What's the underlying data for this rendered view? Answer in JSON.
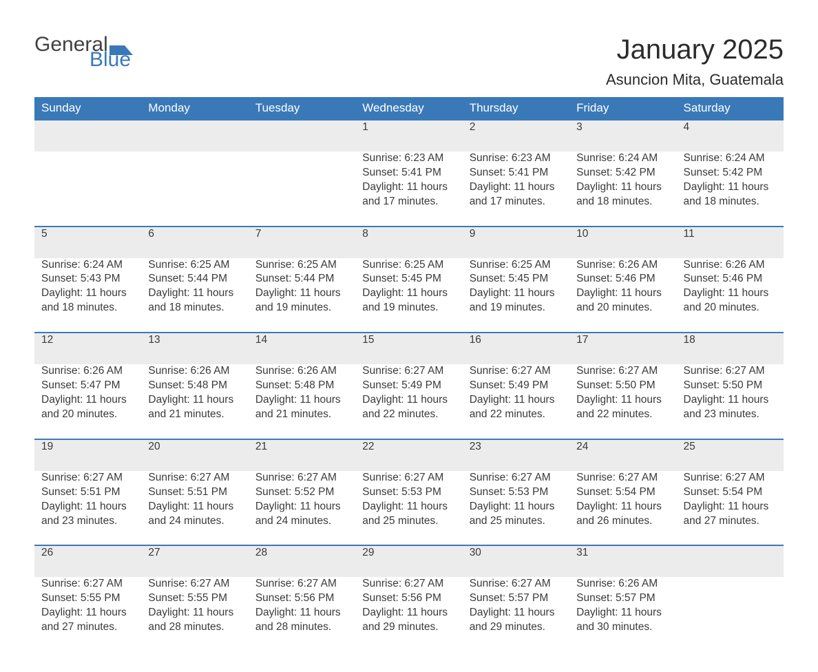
{
  "logo": {
    "word1": "General",
    "word2": "Blue",
    "shape_color": "#3a79b8"
  },
  "title": "January 2025",
  "location": "Asuncion Mita, Guatemala",
  "colors": {
    "header_bg": "#3a79b8",
    "header_text": "#ffffff",
    "daynum_bg": "#ececec",
    "row_border": "#3a79b8",
    "body_text": "#3a3a3a"
  },
  "weekday_labels": [
    "Sunday",
    "Monday",
    "Tuesday",
    "Wednesday",
    "Thursday",
    "Friday",
    "Saturday"
  ],
  "weeks": [
    [
      null,
      null,
      null,
      {
        "n": "1",
        "sunrise": "Sunrise: 6:23 AM",
        "sunset": "Sunset: 5:41 PM",
        "d1": "Daylight: 11 hours",
        "d2": "and 17 minutes."
      },
      {
        "n": "2",
        "sunrise": "Sunrise: 6:23 AM",
        "sunset": "Sunset: 5:41 PM",
        "d1": "Daylight: 11 hours",
        "d2": "and 17 minutes."
      },
      {
        "n": "3",
        "sunrise": "Sunrise: 6:24 AM",
        "sunset": "Sunset: 5:42 PM",
        "d1": "Daylight: 11 hours",
        "d2": "and 18 minutes."
      },
      {
        "n": "4",
        "sunrise": "Sunrise: 6:24 AM",
        "sunset": "Sunset: 5:42 PM",
        "d1": "Daylight: 11 hours",
        "d2": "and 18 minutes."
      }
    ],
    [
      {
        "n": "5",
        "sunrise": "Sunrise: 6:24 AM",
        "sunset": "Sunset: 5:43 PM",
        "d1": "Daylight: 11 hours",
        "d2": "and 18 minutes."
      },
      {
        "n": "6",
        "sunrise": "Sunrise: 6:25 AM",
        "sunset": "Sunset: 5:44 PM",
        "d1": "Daylight: 11 hours",
        "d2": "and 18 minutes."
      },
      {
        "n": "7",
        "sunrise": "Sunrise: 6:25 AM",
        "sunset": "Sunset: 5:44 PM",
        "d1": "Daylight: 11 hours",
        "d2": "and 19 minutes."
      },
      {
        "n": "8",
        "sunrise": "Sunrise: 6:25 AM",
        "sunset": "Sunset: 5:45 PM",
        "d1": "Daylight: 11 hours",
        "d2": "and 19 minutes."
      },
      {
        "n": "9",
        "sunrise": "Sunrise: 6:25 AM",
        "sunset": "Sunset: 5:45 PM",
        "d1": "Daylight: 11 hours",
        "d2": "and 19 minutes."
      },
      {
        "n": "10",
        "sunrise": "Sunrise: 6:26 AM",
        "sunset": "Sunset: 5:46 PM",
        "d1": "Daylight: 11 hours",
        "d2": "and 20 minutes."
      },
      {
        "n": "11",
        "sunrise": "Sunrise: 6:26 AM",
        "sunset": "Sunset: 5:46 PM",
        "d1": "Daylight: 11 hours",
        "d2": "and 20 minutes."
      }
    ],
    [
      {
        "n": "12",
        "sunrise": "Sunrise: 6:26 AM",
        "sunset": "Sunset: 5:47 PM",
        "d1": "Daylight: 11 hours",
        "d2": "and 20 minutes."
      },
      {
        "n": "13",
        "sunrise": "Sunrise: 6:26 AM",
        "sunset": "Sunset: 5:48 PM",
        "d1": "Daylight: 11 hours",
        "d2": "and 21 minutes."
      },
      {
        "n": "14",
        "sunrise": "Sunrise: 6:26 AM",
        "sunset": "Sunset: 5:48 PM",
        "d1": "Daylight: 11 hours",
        "d2": "and 21 minutes."
      },
      {
        "n": "15",
        "sunrise": "Sunrise: 6:27 AM",
        "sunset": "Sunset: 5:49 PM",
        "d1": "Daylight: 11 hours",
        "d2": "and 22 minutes."
      },
      {
        "n": "16",
        "sunrise": "Sunrise: 6:27 AM",
        "sunset": "Sunset: 5:49 PM",
        "d1": "Daylight: 11 hours",
        "d2": "and 22 minutes."
      },
      {
        "n": "17",
        "sunrise": "Sunrise: 6:27 AM",
        "sunset": "Sunset: 5:50 PM",
        "d1": "Daylight: 11 hours",
        "d2": "and 22 minutes."
      },
      {
        "n": "18",
        "sunrise": "Sunrise: 6:27 AM",
        "sunset": "Sunset: 5:50 PM",
        "d1": "Daylight: 11 hours",
        "d2": "and 23 minutes."
      }
    ],
    [
      {
        "n": "19",
        "sunrise": "Sunrise: 6:27 AM",
        "sunset": "Sunset: 5:51 PM",
        "d1": "Daylight: 11 hours",
        "d2": "and 23 minutes."
      },
      {
        "n": "20",
        "sunrise": "Sunrise: 6:27 AM",
        "sunset": "Sunset: 5:51 PM",
        "d1": "Daylight: 11 hours",
        "d2": "and 24 minutes."
      },
      {
        "n": "21",
        "sunrise": "Sunrise: 6:27 AM",
        "sunset": "Sunset: 5:52 PM",
        "d1": "Daylight: 11 hours",
        "d2": "and 24 minutes."
      },
      {
        "n": "22",
        "sunrise": "Sunrise: 6:27 AM",
        "sunset": "Sunset: 5:53 PM",
        "d1": "Daylight: 11 hours",
        "d2": "and 25 minutes."
      },
      {
        "n": "23",
        "sunrise": "Sunrise: 6:27 AM",
        "sunset": "Sunset: 5:53 PM",
        "d1": "Daylight: 11 hours",
        "d2": "and 25 minutes."
      },
      {
        "n": "24",
        "sunrise": "Sunrise: 6:27 AM",
        "sunset": "Sunset: 5:54 PM",
        "d1": "Daylight: 11 hours",
        "d2": "and 26 minutes."
      },
      {
        "n": "25",
        "sunrise": "Sunrise: 6:27 AM",
        "sunset": "Sunset: 5:54 PM",
        "d1": "Daylight: 11 hours",
        "d2": "and 27 minutes."
      }
    ],
    [
      {
        "n": "26",
        "sunrise": "Sunrise: 6:27 AM",
        "sunset": "Sunset: 5:55 PM",
        "d1": "Daylight: 11 hours",
        "d2": "and 27 minutes."
      },
      {
        "n": "27",
        "sunrise": "Sunrise: 6:27 AM",
        "sunset": "Sunset: 5:55 PM",
        "d1": "Daylight: 11 hours",
        "d2": "and 28 minutes."
      },
      {
        "n": "28",
        "sunrise": "Sunrise: 6:27 AM",
        "sunset": "Sunset: 5:56 PM",
        "d1": "Daylight: 11 hours",
        "d2": "and 28 minutes."
      },
      {
        "n": "29",
        "sunrise": "Sunrise: 6:27 AM",
        "sunset": "Sunset: 5:56 PM",
        "d1": "Daylight: 11 hours",
        "d2": "and 29 minutes."
      },
      {
        "n": "30",
        "sunrise": "Sunrise: 6:27 AM",
        "sunset": "Sunset: 5:57 PM",
        "d1": "Daylight: 11 hours",
        "d2": "and 29 minutes."
      },
      {
        "n": "31",
        "sunrise": "Sunrise: 6:26 AM",
        "sunset": "Sunset: 5:57 PM",
        "d1": "Daylight: 11 hours",
        "d2": "and 30 minutes."
      },
      null
    ]
  ]
}
